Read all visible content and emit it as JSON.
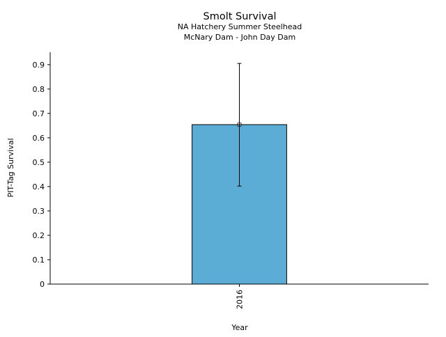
{
  "chart_data": {
    "type": "bar",
    "title": "Smolt Survival",
    "subtitle_lines": [
      "NA Hatchery Summer Steelhead",
      "McNary Dam - John Day Dam"
    ],
    "xlabel": "Year",
    "ylabel": "PIT-Tag Survival",
    "categories": [
      "2016"
    ],
    "values": [
      0.654
    ],
    "error_low": [
      0.402
    ],
    "error_high": [
      0.905
    ],
    "ylim": [
      0,
      0.951
    ],
    "yticks": [
      "0",
      "0.1",
      "0.2",
      "0.3",
      "0.4",
      "0.5",
      "0.6",
      "0.7",
      "0.8",
      "0.9"
    ],
    "grid": false,
    "bar_color": "#5badd6"
  }
}
